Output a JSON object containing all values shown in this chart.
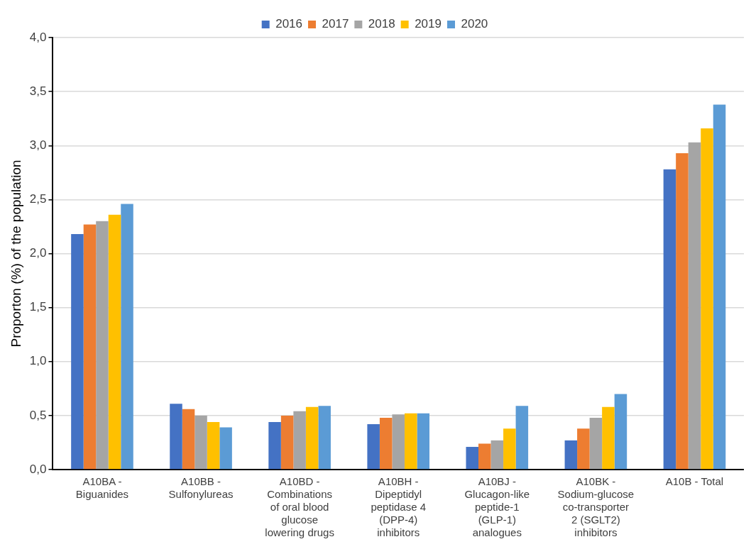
{
  "chart_data": {
    "type": "bar",
    "ylabel": "Proporton (%) of the population",
    "categories": [
      "A10BA - Biguanides",
      "A10BB - Sulfonylureas",
      "A10BD - Combinations of oral blood glucose lowering drugs",
      "A10BH - Dipeptidyl peptidase 4 (DPP-4) inhibitors",
      "A10BJ - Glucagon-like peptide-1 (GLP-1) analogues",
      "A10BK - Sodium-glucose co-transporter 2 (SGLT2) inhibitors",
      "A10B - Total"
    ],
    "series": [
      {
        "name": "2016",
        "color": "#4472c4",
        "values": [
          2.18,
          0.61,
          0.44,
          0.42,
          0.21,
          0.27,
          2.78
        ]
      },
      {
        "name": "2017",
        "color": "#ed7d31",
        "values": [
          2.27,
          0.56,
          0.5,
          0.48,
          0.24,
          0.38,
          2.93
        ]
      },
      {
        "name": "2018",
        "color": "#a5a5a5",
        "values": [
          2.3,
          0.5,
          0.54,
          0.51,
          0.27,
          0.48,
          3.03
        ]
      },
      {
        "name": "2019",
        "color": "#ffc000",
        "values": [
          2.36,
          0.44,
          0.58,
          0.52,
          0.38,
          0.58,
          3.16
        ]
      },
      {
        "name": "2020",
        "color": "#5b9bd5",
        "values": [
          2.46,
          0.39,
          0.59,
          0.52,
          0.59,
          0.7,
          3.38
        ]
      }
    ],
    "ylim": [
      0,
      4
    ],
    "yticks": [
      {
        "value": 0,
        "label": "0,0"
      },
      {
        "value": 0.5,
        "label": "0,5"
      },
      {
        "value": 1,
        "label": "1,0"
      },
      {
        "value": 1.5,
        "label": "1,5"
      },
      {
        "value": 2,
        "label": "2,0"
      },
      {
        "value": 2.5,
        "label": "2,5"
      },
      {
        "value": 3,
        "label": "3,0"
      },
      {
        "value": 3.5,
        "label": "3,5"
      },
      {
        "value": 4,
        "label": "4,0"
      }
    ],
    "grid": "y",
    "legend": "top"
  }
}
